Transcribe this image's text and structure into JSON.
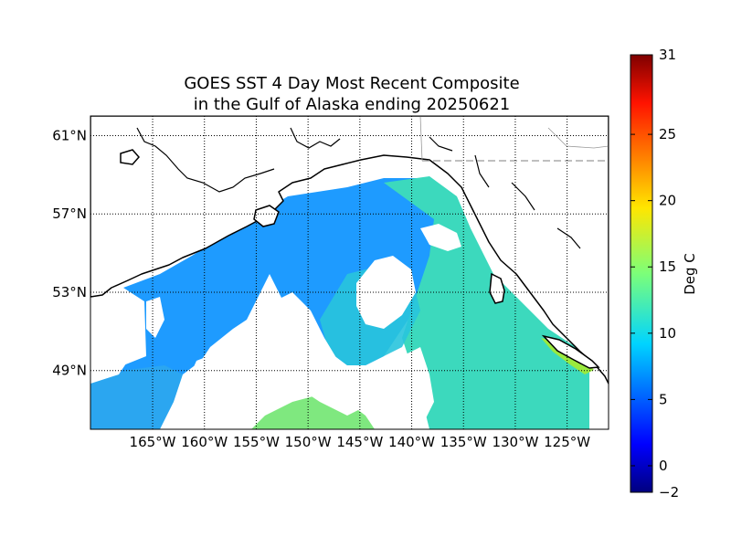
{
  "title": {
    "line1": "GOES SST 4 Day Most Recent Composite",
    "line2": "in the Gulf of Alaska ending 20250621"
  },
  "map": {
    "lon_range": [
      -171,
      -121
    ],
    "lat_range": [
      46,
      62
    ],
    "lon_ticks": [
      {
        "value": -165,
        "label": "165°W"
      },
      {
        "value": -160,
        "label": "160°W"
      },
      {
        "value": -155,
        "label": "155°W"
      },
      {
        "value": -150,
        "label": "150°W"
      },
      {
        "value": -145,
        "label": "145°W"
      },
      {
        "value": -140,
        "label": "140°W"
      },
      {
        "value": -135,
        "label": "135°W"
      },
      {
        "value": -130,
        "label": "130°W"
      },
      {
        "value": -125,
        "label": "125°W"
      }
    ],
    "lat_ticks": [
      {
        "value": 61,
        "label": "61°N"
      },
      {
        "value": 57,
        "label": "57°N"
      },
      {
        "value": 53,
        "label": "53°N"
      },
      {
        "value": 49,
        "label": "49°N"
      }
    ],
    "gridlines": "dotted",
    "no_data_color": "#ffffff"
  },
  "colorbar": {
    "label": "Deg C",
    "min": -2,
    "max": 31,
    "ticks": [
      {
        "value": 31,
        "label": "31"
      },
      {
        "value": 25,
        "label": "25"
      },
      {
        "value": 20,
        "label": "20"
      },
      {
        "value": 15,
        "label": "15"
      },
      {
        "value": 10,
        "label": "10"
      },
      {
        "value": 5,
        "label": "5"
      },
      {
        "value": 0,
        "label": "0"
      },
      {
        "value": -2,
        "label": "−2"
      }
    ],
    "colormap": "jet"
  },
  "sst_colors": {
    "western_gulf": "#1e9bff",
    "central_gulf": "#19c8d9",
    "eastern_gulf": "#44e0b0",
    "southern_warm_patch": "#7fe87f",
    "puget_sound": "#9aea3e",
    "land_outline": "#000000"
  }
}
